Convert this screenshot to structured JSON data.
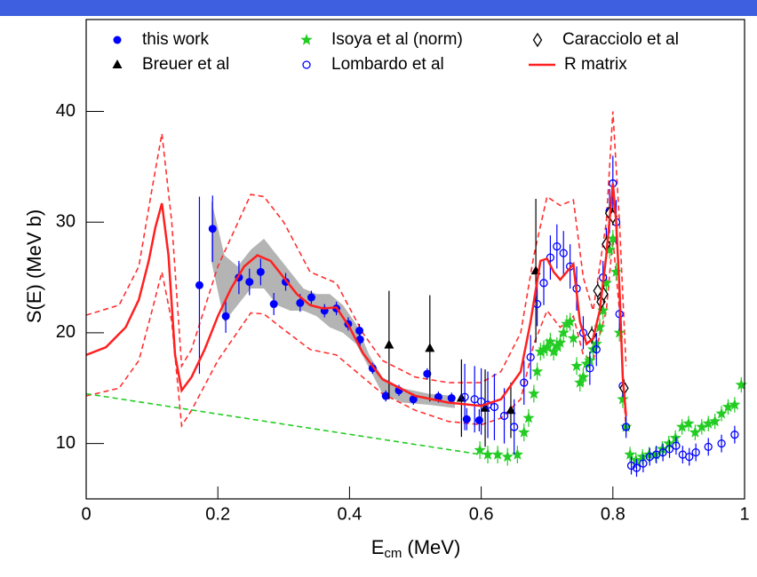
{
  "chart_data": {
    "type": "scatter",
    "ylabel": "S(E) (MeV b)",
    "xlabel": [
      "E",
      "cm",
      "(MeV)"
    ],
    "xlim": [
      0,
      1
    ],
    "xticks": [
      0,
      0.2,
      0.4,
      0.6,
      0.8,
      1
    ],
    "ylim": [
      5,
      48.3
    ],
    "yticks": [
      10,
      20,
      30,
      40
    ],
    "band": {
      "color": "#b4b4b4",
      "x": [
        0.19,
        0.21,
        0.23,
        0.25,
        0.27,
        0.29,
        0.31,
        0.33,
        0.35,
        0.37,
        0.39,
        0.41,
        0.43,
        0.45,
        0.48,
        0.52,
        0.56
      ],
      "lower": [
        26.5,
        21,
        22.5,
        24,
        24,
        22.5,
        22,
        22,
        21.5,
        20.5,
        20,
        19,
        16.8,
        14.5,
        13.7,
        13.5,
        13.2
      ],
      "upper": [
        32,
        27,
        26,
        27.5,
        28.5,
        27,
        25.5,
        24,
        23.5,
        23.5,
        22.5,
        20.8,
        18,
        16,
        15,
        14.5,
        14.3
      ]
    },
    "extra_lines": [
      {
        "color": "#ff3030",
        "dash": true,
        "x": [
          0,
          0.05,
          0.08,
          0.1,
          0.115,
          0.13,
          0.145,
          0.16,
          0.2,
          0.25,
          0.27,
          0.3,
          0.34,
          0.38,
          0.42,
          0.45,
          0.5,
          0.55,
          0.6,
          0.63,
          0.66,
          0.68,
          0.7,
          0.72,
          0.74,
          0.755,
          0.77,
          0.79,
          0.8,
          0.81,
          0.82
        ],
        "values": [
          21.6,
          22.5,
          26,
          33,
          38,
          30,
          17,
          18.5,
          26,
          32.5,
          32.3,
          30,
          25.5,
          24.5,
          20,
          17.5,
          16,
          15.5,
          15.5,
          16.5,
          20,
          27,
          32.3,
          31.5,
          32,
          25,
          22,
          30,
          40,
          30,
          17
        ]
      },
      {
        "color": "#ff3030",
        "dash": true,
        "x": [
          0,
          0.05,
          0.08,
          0.1,
          0.115,
          0.13,
          0.145,
          0.16,
          0.2,
          0.25,
          0.27,
          0.3,
          0.34,
          0.38,
          0.42,
          0.45,
          0.5,
          0.55,
          0.6,
          0.63,
          0.66,
          0.68,
          0.7,
          0.72,
          0.74,
          0.755,
          0.77,
          0.79,
          0.8,
          0.81,
          0.82
        ],
        "values": [
          14.3,
          15,
          17.5,
          22,
          25.5,
          21,
          11.6,
          13,
          17.5,
          21.8,
          21.7,
          20.3,
          18.5,
          18,
          16,
          14.5,
          13,
          12,
          11.7,
          12.3,
          14,
          19,
          22,
          20.5,
          21.5,
          18,
          17.5,
          22,
          28.5,
          22,
          11
        ]
      },
      {
        "color": "#22cc22",
        "dash": true,
        "x": [
          0,
          0.6
        ],
        "values": [
          14.5,
          9.0
        ]
      }
    ],
    "series": [
      {
        "name": "this work",
        "color": "#0000ff",
        "marker": "circle",
        "x": [
          0.172,
          0.192,
          0.212,
          0.232,
          0.248,
          0.265,
          0.285,
          0.303,
          0.325,
          0.342,
          0.362,
          0.38,
          0.398,
          0.415,
          0.416,
          0.435,
          0.455,
          0.475,
          0.497,
          0.518,
          0.535,
          0.555,
          0.578,
          0.597
        ],
        "values": [
          24.3,
          29.4,
          21.5,
          25.0,
          24.6,
          25.5,
          22.6,
          24.6,
          22.7,
          23.2,
          22.0,
          22.2,
          20.8,
          20.2,
          19.4,
          16.8,
          14.3,
          14.8,
          14.0,
          16.3,
          14.2,
          14.1,
          12.2,
          12.1
        ],
        "errors": [
          8,
          3,
          1.5,
          1.5,
          1.2,
          1.2,
          1,
          0.8,
          0.8,
          0.6,
          0.6,
          0.6,
          0.6,
          0.6,
          0.6,
          0.5,
          0.5,
          0.5,
          0.5,
          0.5,
          0.5,
          0.5,
          1,
          1
        ]
      },
      {
        "name": "Breuer et al",
        "color": "#000000",
        "marker": "triangle",
        "x": [
          0.46,
          0.522,
          0.57,
          0.606,
          0.645,
          0.683
        ],
        "values": [
          18.9,
          18.6,
          14.1,
          13.2,
          13.0,
          25.6
        ],
        "errors": [
          4.9,
          4.8,
          3.5,
          3.5,
          2.5,
          6.5
        ]
      },
      {
        "name": "Isoya et al (norm)",
        "color": "#22cc22",
        "marker": "star",
        "x": [
          0.598,
          0.61,
          0.625,
          0.64,
          0.655,
          0.665,
          0.672,
          0.68,
          0.685,
          0.69,
          0.695,
          0.7,
          0.705,
          0.71,
          0.715,
          0.72,
          0.725,
          0.73,
          0.735,
          0.74,
          0.745,
          0.75,
          0.755,
          0.76,
          0.765,
          0.77,
          0.775,
          0.78,
          0.785,
          0.79,
          0.795,
          0.8,
          0.805,
          0.81,
          0.815,
          0.82,
          0.826,
          0.835,
          0.845,
          0.855,
          0.865,
          0.875,
          0.885,
          0.895,
          0.905,
          0.915,
          0.925,
          0.935,
          0.945,
          0.955,
          0.965,
          0.975,
          0.985,
          0.995
        ],
        "values": [
          9.4,
          9.0,
          9.0,
          8.8,
          9.0,
          11,
          12.3,
          14.5,
          16.5,
          18.3,
          18.5,
          18.7,
          19.2,
          18.3,
          18.8,
          19.1,
          20,
          20.8,
          21,
          19.5,
          17,
          15.5,
          16,
          17.2,
          17.5,
          18.5,
          19,
          20.5,
          22,
          24.5,
          27.5,
          28.5,
          25.5,
          20,
          14,
          11.5,
          9.0,
          8.5,
          8.8,
          9.0,
          9.0,
          9.5,
          10.0,
          10.5,
          11.5,
          11.8,
          11.0,
          11.5,
          11.8,
          12.0,
          12.7,
          13.3,
          13.5,
          15.3
        ],
        "errors": [
          0.8,
          0.8,
          0.8,
          0.8,
          0.8,
          0.8,
          0.8,
          0.8,
          0.8,
          0.8,
          0.8,
          0.8,
          0.8,
          0.8,
          0.8,
          0.8,
          0.8,
          0.8,
          0.8,
          0.8,
          0.8,
          0.8,
          0.8,
          0.8,
          0.8,
          0.8,
          0.8,
          0.8,
          0.8,
          0.8,
          0.8,
          0.8,
          0.8,
          0.8,
          0.8,
          0.8,
          0.7,
          0.7,
          0.7,
          0.7,
          0.7,
          0.7,
          0.7,
          0.7,
          0.7,
          0.7,
          0.7,
          0.7,
          0.7,
          0.7,
          0.7,
          0.7,
          0.7,
          0.7
        ]
      },
      {
        "name": "Lombardo et al",
        "color": "#0000ff",
        "marker": "open-circle",
        "x": [
          0.575,
          0.59,
          0.6,
          0.61,
          0.62,
          0.635,
          0.65,
          0.665,
          0.675,
          0.685,
          0.695,
          0.705,
          0.715,
          0.725,
          0.735,
          0.745,
          0.755,
          0.765,
          0.775,
          0.785,
          0.79,
          0.795,
          0.8,
          0.805,
          0.81,
          0.815,
          0.82,
          0.828,
          0.836,
          0.846,
          0.856,
          0.866,
          0.876,
          0.886,
          0.896,
          0.906,
          0.916,
          0.926,
          0.945,
          0.965,
          0.985
        ],
        "values": [
          14.2,
          14.0,
          13.8,
          13.5,
          13.3,
          12.5,
          11.5,
          15.5,
          17.8,
          22.6,
          24.5,
          26.8,
          27.8,
          27.2,
          26,
          24,
          20,
          16.8,
          18.5,
          25,
          28,
          31,
          33.5,
          30,
          21.7,
          15.2,
          11.5,
          8.0,
          7.8,
          8.2,
          8.8,
          9.0,
          9.2,
          9.5,
          9.8,
          9.0,
          8.8,
          9.2,
          9.7,
          10.0,
          10.8
        ],
        "errors": [
          3,
          3,
          3,
          3,
          3,
          2.5,
          2.5,
          2,
          2,
          2,
          2,
          2,
          2,
          2,
          2,
          2,
          1.5,
          1.5,
          1.5,
          1.5,
          1.5,
          2,
          2.5,
          2,
          1.5,
          1,
          1,
          0.8,
          0.8,
          0.8,
          0.8,
          0.8,
          0.8,
          0.8,
          0.8,
          0.8,
          0.8,
          0.8,
          0.8,
          0.8,
          0.8
        ]
      },
      {
        "name": "Caracciolo et al",
        "color": "#000000",
        "marker": "diamond",
        "x": [
          0.768,
          0.777,
          0.782,
          0.786,
          0.79,
          0.795,
          0.8,
          0.817
        ],
        "values": [
          19.8,
          23.8,
          22.8,
          23.5,
          28.0,
          30.8,
          30.5,
          15.0
        ],
        "errors": [
          0.8,
          0.8,
          0.8,
          0.8,
          0.8,
          0.8,
          0.8,
          0.8
        ]
      },
      {
        "name": "R matrix",
        "color": "#ff2020",
        "marker": "line",
        "x": [
          0,
          0.03,
          0.06,
          0.08,
          0.095,
          0.105,
          0.115,
          0.125,
          0.135,
          0.145,
          0.16,
          0.18,
          0.2,
          0.22,
          0.24,
          0.26,
          0.28,
          0.3,
          0.32,
          0.34,
          0.36,
          0.38,
          0.4,
          0.42,
          0.45,
          0.5,
          0.55,
          0.6,
          0.63,
          0.66,
          0.675,
          0.69,
          0.7,
          0.71,
          0.72,
          0.73,
          0.74,
          0.75,
          0.76,
          0.77,
          0.78,
          0.79,
          0.8,
          0.805,
          0.81,
          0.815,
          0.82
        ],
        "values": [
          18.0,
          18.7,
          20.5,
          23,
          26.5,
          29.5,
          31.7,
          27,
          18,
          14.8,
          16,
          18.5,
          21.5,
          24,
          26,
          27,
          26.5,
          25,
          23.5,
          22.5,
          22.2,
          22.3,
          20.5,
          18.2,
          15.8,
          14.3,
          13.7,
          13.4,
          14,
          16.5,
          21,
          26.5,
          26.7,
          25.5,
          24.8,
          25.5,
          26.2,
          21,
          19,
          19.5,
          22,
          27,
          33.5,
          30,
          24,
          16,
          12.5
        ]
      }
    ]
  }
}
